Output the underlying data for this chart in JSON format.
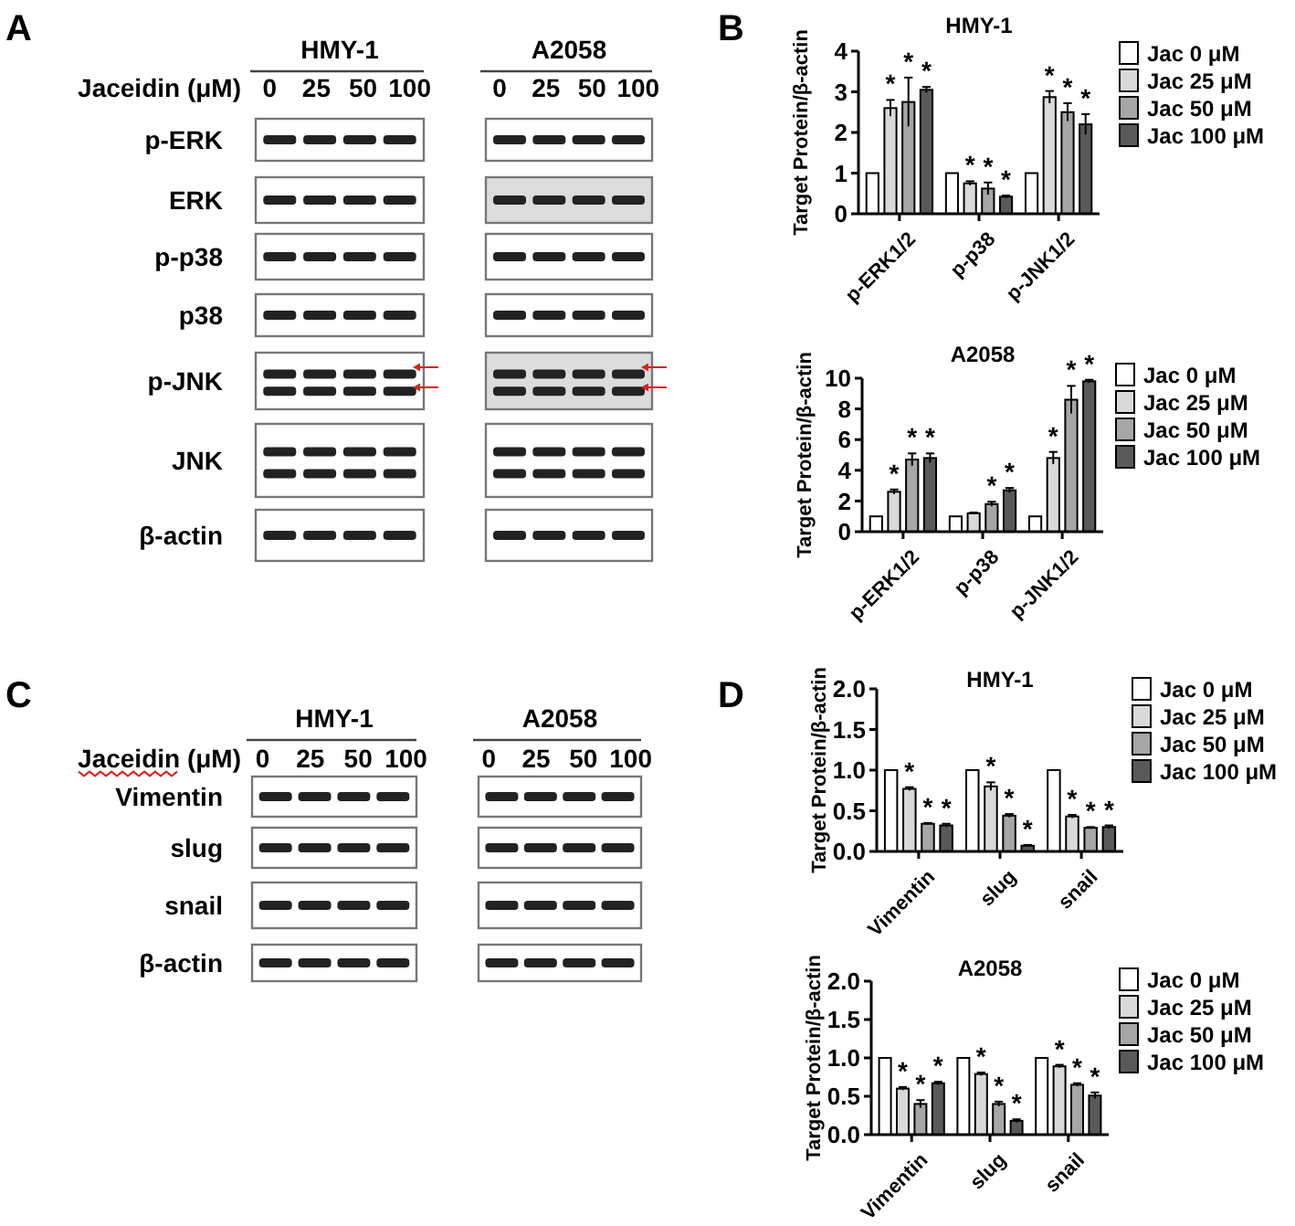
{
  "chart_data": [
    {
      "type": "other",
      "annotations": [
        "A",
        "HMY-1",
        "A2058"
      ],
      "xlabel": "Jaceidin (μM)",
      "categories": [
        "0",
        "25",
        "50",
        "100"
      ],
      "y_categories": [
        "p-ERK",
        "ERK",
        "p-p38",
        "p38",
        "p-JNK",
        "JNK",
        "β-actin"
      ]
    },
    {
      "type": "bar",
      "title": "HMY-1",
      "ylabel": "Target Protein/β-actin",
      "annotations": [
        "B"
      ],
      "categories": [
        "p-ERK1/2",
        "p-p38",
        "p-JNK1/2"
      ],
      "series": [
        {
          "name": "Jac 0 μM",
          "color": "#ffffff",
          "values": [
            1,
            1,
            1
          ]
        },
        {
          "name": "Jac 25 μM",
          "color": "#d9d9d9",
          "values": [
            2.6,
            0.75,
            2.87
          ],
          "errors": [
            0.2,
            0.05,
            0.15
          ],
          "value_labels": [
            "*",
            "*",
            "*"
          ]
        },
        {
          "name": "Jac 50 μM",
          "color": "#a6a6a6",
          "values": [
            2.75,
            0.62,
            2.5
          ],
          "errors": [
            0.6,
            0.15,
            0.22
          ],
          "value_labels": [
            "*",
            "*",
            "*"
          ]
        },
        {
          "name": "Jac 100 μM",
          "color": "#595959",
          "values": [
            3.05,
            0.42,
            2.2
          ],
          "errors": [
            0.07,
            0.03,
            0.25
          ],
          "value_labels": [
            "*",
            "*",
            "*"
          ]
        }
      ],
      "ylim": [
        0,
        4
      ],
      "yticks": [
        0,
        1,
        2,
        3,
        4
      ],
      "legend": "right"
    },
    {
      "type": "bar",
      "title": "A2058",
      "ylabel": "Target Protein/β-actin",
      "categories": [
        "p-ERK1/2",
        "p-p38",
        "p-JNK1/2"
      ],
      "series": [
        {
          "name": "Jac 0 μM",
          "color": "#ffffff",
          "values": [
            1,
            1,
            1
          ]
        },
        {
          "name": "Jac 25 μM",
          "color": "#d9d9d9",
          "values": [
            2.6,
            1.2,
            4.8
          ],
          "errors": [
            0.15,
            0.05,
            0.4
          ],
          "value_labels": [
            "*",
            null,
            "*"
          ]
        },
        {
          "name": "Jac 50 μM",
          "color": "#a6a6a6",
          "values": [
            4.7,
            1.8,
            8.6
          ],
          "errors": [
            0.4,
            0.15,
            0.9
          ],
          "value_labels": [
            "*",
            "*",
            "*"
          ]
        },
        {
          "name": "Jac 100 μM",
          "color": "#595959",
          "values": [
            4.8,
            2.7,
            9.8
          ],
          "errors": [
            0.3,
            0.15,
            0.1
          ],
          "value_labels": [
            "*",
            "*",
            "*"
          ]
        }
      ],
      "ylim": [
        0,
        10
      ],
      "yticks": [
        0,
        2,
        4,
        6,
        8,
        10
      ],
      "legend": "right"
    },
    {
      "type": "other",
      "annotations": [
        "C",
        "HMY-1",
        "A2058"
      ],
      "xlabel": "Jaceidin (μM)",
      "categories": [
        "0",
        "25",
        "50",
        "100"
      ],
      "y_categories": [
        "Vimentin",
        "slug",
        "snail",
        "β-actin"
      ]
    },
    {
      "type": "bar",
      "title": "HMY-1",
      "ylabel": "Target Protein/β-actin",
      "annotations": [
        "D"
      ],
      "categories": [
        "Vimentin",
        "slug",
        "snail"
      ],
      "series": [
        {
          "name": "Jac 0 μM",
          "color": "#ffffff",
          "values": [
            1,
            1,
            1
          ]
        },
        {
          "name": "Jac 25 μM",
          "color": "#d9d9d9",
          "values": [
            0.77,
            0.8,
            0.43
          ],
          "errors": [
            0.02,
            0.05,
            0.02
          ],
          "value_labels": [
            "*",
            "*",
            "*"
          ]
        },
        {
          "name": "Jac 50 μM",
          "color": "#a6a6a6",
          "values": [
            0.34,
            0.44,
            0.29
          ],
          "errors": [
            0.01,
            0.02,
            0.01
          ],
          "value_labels": [
            "*",
            "*",
            "*"
          ]
        },
        {
          "name": "Jac 100 μM",
          "color": "#595959",
          "values": [
            0.32,
            0.07,
            0.3
          ],
          "errors": [
            0.02,
            0.01,
            0.02
          ],
          "value_labels": [
            "*",
            "*",
            "*"
          ]
        }
      ],
      "ylim": [
        0,
        2
      ],
      "yticks": [
        {
          "value": 0,
          "label": "0.0"
        },
        0.5,
        {
          "value": 1,
          "label": "1.0"
        },
        1.5,
        {
          "value": 2,
          "label": "2.0"
        }
      ],
      "legend": "right"
    },
    {
      "type": "bar",
      "title": "A2058",
      "ylabel": "Target Protein/β-actin",
      "categories": [
        "Vimentin",
        "slug",
        "snail"
      ],
      "series": [
        {
          "name": "Jac 0 μM",
          "color": "#ffffff",
          "values": [
            1,
            1,
            1
          ]
        },
        {
          "name": "Jac 25 μM",
          "color": "#d9d9d9",
          "values": [
            0.6,
            0.79,
            0.89
          ],
          "errors": [
            0.02,
            0.02,
            0.02
          ],
          "value_labels": [
            "*",
            "*",
            "*"
          ]
        },
        {
          "name": "Jac 50 μM",
          "color": "#a6a6a6",
          "values": [
            0.4,
            0.4,
            0.65
          ],
          "errors": [
            0.05,
            0.03,
            0.02
          ],
          "value_labels": [
            "*",
            "*",
            "*"
          ]
        },
        {
          "name": "Jac 100 μM",
          "color": "#595959",
          "values": [
            0.67,
            0.18,
            0.51
          ],
          "errors": [
            0.02,
            0.02,
            0.04
          ],
          "value_labels": [
            "*",
            "*",
            "*"
          ]
        }
      ],
      "ylim": [
        0,
        2
      ],
      "yticks": [
        {
          "value": 0,
          "label": "0.0"
        },
        0.5,
        {
          "value": 1,
          "label": "1.0"
        },
        1.5,
        {
          "value": 2,
          "label": "2.0"
        }
      ],
      "legend": "right"
    }
  ]
}
